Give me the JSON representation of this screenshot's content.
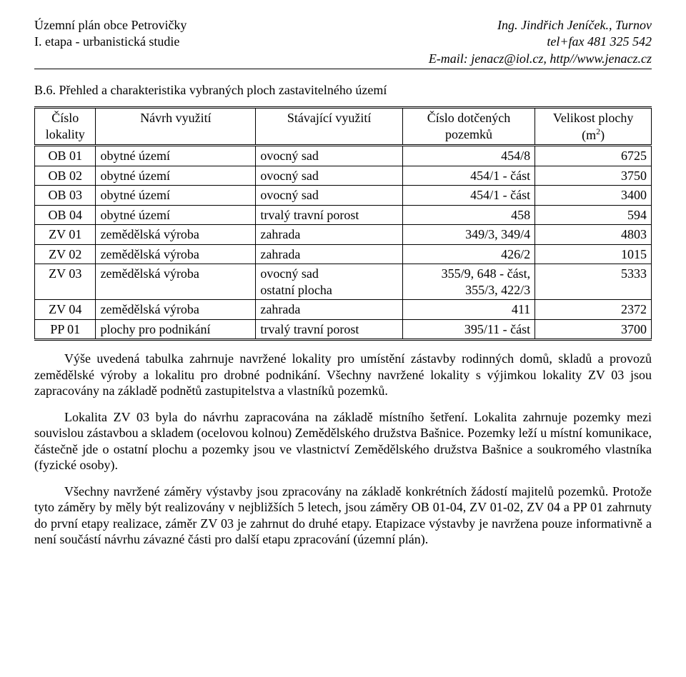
{
  "header": {
    "left_line1": "Územní plán obce Petrovičky",
    "left_line2": "I. etapa - urbanistická studie",
    "right_line1": "Ing. Jindřich Jeníček., Turnov",
    "right_line2": "tel+fax 481 325 542",
    "email_line": "E-mail: jenacz@iol.cz,  http//www.jenacz.cz"
  },
  "section_title": "B.6. Přehled a charakteristika vybraných ploch zastavitelného území",
  "table": {
    "columns": {
      "c1a": "Číslo",
      "c1b": "lokality",
      "c2": "Návrh využití",
      "c3": "Stávající využití",
      "c4a": "Číslo dotčených",
      "c4b": "pozemků",
      "c5a": "Velikost plochy",
      "c5b_pre": "(m",
      "c5b_sup": "2",
      "c5b_post": ")"
    },
    "rows": [
      {
        "c1": "OB 01",
        "c2": "obytné území",
        "c3": "ovocný sad",
        "c4": "454/8",
        "c5": "6725"
      },
      {
        "c1": "OB 02",
        "c2": "obytné území",
        "c3": "ovocný sad",
        "c4": "454/1 - část",
        "c5": "3750"
      },
      {
        "c1": "OB 03",
        "c2": "obytné území",
        "c3": "ovocný sad",
        "c4": "454/1 - část",
        "c5": "3400"
      },
      {
        "c1": "OB 04",
        "c2": "obytné území",
        "c3": "trvalý travní porost",
        "c4": "458",
        "c5": "594"
      },
      {
        "c1": "ZV 01",
        "c2": "zemědělská výroba",
        "c3": "zahrada",
        "c4": "349/3, 349/4",
        "c5": "4803"
      },
      {
        "c1": "ZV 02",
        "c2": "zemědělská výroba",
        "c3": "zahrada",
        "c4": "426/2",
        "c5": "1015"
      },
      {
        "c1": "ZV 03",
        "c2": "zemědělská výroba",
        "c3_l1": "ovocný sad",
        "c3_l2": "ostatní plocha",
        "c4_l1": "355/9, 648 - část,",
        "c4_l2": "355/3, 422/3",
        "c5": "5333"
      },
      {
        "c1": "ZV 04",
        "c2": "zemědělská výroba",
        "c3": "zahrada",
        "c4": "411",
        "c5": "2372"
      },
      {
        "c1": "PP 01",
        "c2": "plochy pro podnikání",
        "c3": "trvalý travní porost",
        "c4": "395/11 - část",
        "c5": "3700"
      }
    ]
  },
  "paragraphs": {
    "p1": "Výše uvedená tabulka zahrnuje navržené lokality pro umístění zástavby rodinných domů, skladů a provozů zemědělské výroby a lokalitu pro drobné podnikání. Všechny navržené lokality s výjimkou lokality ZV 03 jsou zapracovány na základě podnětů zastupitelstva a vlastníků pozemků.",
    "p2": "Lokalita ZV 03 byla do návrhu zapracována na základě místního šetření. Lokalita zahrnuje pozemky mezi souvislou zástavbou a skladem (ocelovou kolnou) Zemědělského družstva Bašnice. Pozemky leží u místní komunikace, částečně jde o ostatní plochu a pozemky jsou ve vlastnictví Zemědělského družstva Bašnice a soukromého vlastníka (fyzické osoby).",
    "p3": "Všechny navržené záměry výstavby jsou zpracovány na základě konkrétních žádostí majitelů pozemků. Protože tyto záměry by měly být realizovány v nejbližších 5 letech, jsou záměry OB 01-04, ZV 01-02, ZV 04 a PP 01 zahrnuty do první etapy realizace, záměr ZV 03 je zahrnut do druhé etapy. Etapizace výstavby je navržena pouze informativně a není součástí návrhu závazné části pro další etapu zpracování (územní plán)."
  }
}
